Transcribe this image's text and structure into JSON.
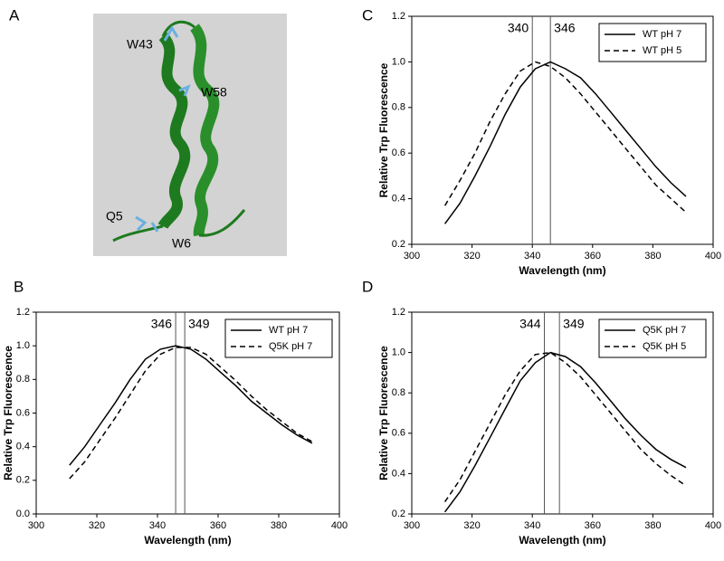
{
  "structure": {
    "label": "A",
    "residues": [
      "W43",
      "W58",
      "Q5",
      "W6"
    ]
  },
  "chart_data": [
    {
      "type": "line",
      "panel_label": "B",
      "xlabel": "Wavelength (nm)",
      "ylabel": "Relative Trp Fluorescence",
      "x": [
        311,
        316,
        321,
        326,
        331,
        336,
        341,
        346,
        351,
        356,
        361,
        366,
        371,
        376,
        381,
        386,
        391
      ],
      "series": [
        {
          "name": "WT pH 7",
          "color": "#000000",
          "dash": "solid",
          "values": [
            0.29,
            0.4,
            0.53,
            0.66,
            0.8,
            0.92,
            0.98,
            1.0,
            0.98,
            0.92,
            0.84,
            0.76,
            0.67,
            0.6,
            0.53,
            0.47,
            0.42
          ]
        },
        {
          "name": "Q5K pH 7",
          "color": "#000000",
          "dash": "dashed",
          "values": [
            0.21,
            0.31,
            0.44,
            0.57,
            0.71,
            0.85,
            0.95,
            0.99,
            0.99,
            0.95,
            0.87,
            0.79,
            0.7,
            0.62,
            0.55,
            0.48,
            0.43
          ]
        }
      ],
      "vlines": [
        346,
        349
      ],
      "xlim": [
        300,
        400
      ],
      "xticks": [
        300,
        320,
        340,
        360,
        380,
        400
      ],
      "ylim": [
        0,
        1.2
      ],
      "yticks": [
        {
          "value": 0,
          "label": "0.0"
        },
        0.2,
        0.4,
        0.6,
        0.8,
        {
          "value": 1,
          "label": "1.0"
        },
        1.2
      ],
      "grid": false,
      "legend": "upper right"
    },
    {
      "type": "line",
      "panel_label": "C",
      "xlabel": "Wavelength (nm)",
      "ylabel": "Relative Trp Fluorescence",
      "x": [
        311,
        316,
        321,
        326,
        331,
        336,
        341,
        346,
        351,
        356,
        361,
        366,
        371,
        376,
        381,
        386,
        391
      ],
      "series": [
        {
          "name": "WT pH 7",
          "color": "#000000",
          "dash": "solid",
          "values": [
            0.29,
            0.38,
            0.5,
            0.63,
            0.77,
            0.89,
            0.97,
            1.0,
            0.97,
            0.93,
            0.86,
            0.78,
            0.7,
            0.62,
            0.54,
            0.47,
            0.41
          ]
        },
        {
          "name": "WT pH 5",
          "color": "#000000",
          "dash": "dashed",
          "values": [
            0.37,
            0.48,
            0.6,
            0.74,
            0.86,
            0.96,
            1.0,
            0.98,
            0.93,
            0.86,
            0.78,
            0.7,
            0.62,
            0.54,
            0.46,
            0.4,
            0.34
          ]
        }
      ],
      "vlines": [
        340,
        346
      ],
      "xlim": [
        300,
        400
      ],
      "xticks": [
        300,
        320,
        340,
        360,
        380,
        400
      ],
      "ylim": [
        0.2,
        1.2
      ],
      "yticks": [
        0.2,
        0.4,
        0.6,
        0.8,
        {
          "value": 1,
          "label": "1.0"
        },
        1.2
      ],
      "grid": false,
      "legend": "upper right"
    },
    {
      "type": "line",
      "panel_label": "D",
      "xlabel": "Wavelength (nm)",
      "ylabel": "Relative Trp Fluorescence",
      "x": [
        311,
        316,
        321,
        326,
        331,
        336,
        341,
        346,
        351,
        356,
        361,
        366,
        371,
        376,
        381,
        386,
        391
      ],
      "series": [
        {
          "name": "Q5K pH 7",
          "color": "#000000",
          "dash": "solid",
          "values": [
            0.21,
            0.31,
            0.44,
            0.58,
            0.72,
            0.86,
            0.95,
            1.0,
            0.98,
            0.93,
            0.85,
            0.76,
            0.67,
            0.59,
            0.52,
            0.47,
            0.43
          ]
        },
        {
          "name": "Q5K pH 5",
          "color": "#000000",
          "dash": "dashed",
          "values": [
            0.26,
            0.37,
            0.51,
            0.65,
            0.79,
            0.91,
            0.99,
            1.0,
            0.95,
            0.88,
            0.79,
            0.7,
            0.61,
            0.52,
            0.45,
            0.39,
            0.34
          ]
        }
      ],
      "vlines": [
        344,
        349
      ],
      "xlim": [
        300,
        400
      ],
      "xticks": [
        300,
        320,
        340,
        360,
        380,
        400
      ],
      "ylim": [
        0.2,
        1.2
      ],
      "yticks": [
        0.2,
        0.4,
        0.6,
        0.8,
        {
          "value": 1,
          "label": "1.0"
        },
        1.2
      ],
      "grid": false,
      "legend": "upper right"
    }
  ]
}
